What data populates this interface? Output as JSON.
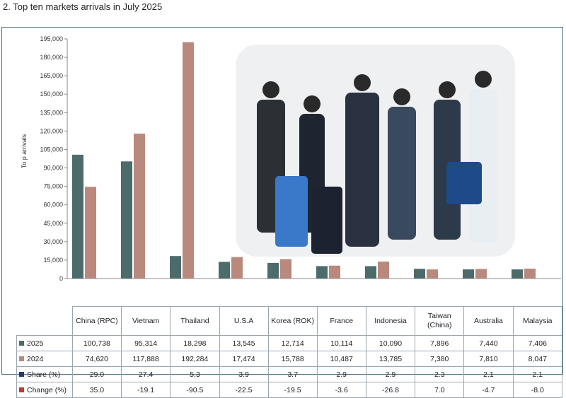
{
  "title": "2. Top ten markets arrivals in July 2025",
  "chart_data": {
    "type": "bar",
    "ylabel": "To p arrivals",
    "ylim": [
      0,
      195000
    ],
    "yticks": [
      "0",
      "15,000",
      "30,000",
      "45,000",
      "60,000",
      "75,000",
      "90,000",
      "105,000",
      "120,000",
      "135,000",
      "150,000",
      "165,000",
      "180,000",
      "195,000"
    ],
    "ytick_values": [
      0,
      15000,
      30000,
      45000,
      60000,
      75000,
      90000,
      105000,
      120000,
      135000,
      150000,
      165000,
      180000,
      195000
    ],
    "categories": [
      "China (RPC)",
      "Vietnam",
      "Thailand",
      "U.S.A",
      "Korea (ROK)",
      "France",
      "Indonesia",
      "Taiwan (China)",
      "Australia",
      "Malaysia"
    ],
    "series": [
      {
        "name": "2025",
        "color": "#4d6b6b",
        "values": [
          100738,
          95314,
          18298,
          13545,
          12714,
          10114,
          10090,
          7896,
          7440,
          7406
        ]
      },
      {
        "name": "2024",
        "color": "#b8897c",
        "values": [
          74620,
          117888,
          192284,
          17474,
          15788,
          10487,
          13785,
          7380,
          7810,
          8047
        ]
      }
    ],
    "grid": false,
    "legend": "table"
  },
  "table": {
    "categories": [
      "China (RPC)",
      "Vietnam",
      "Thailand",
      "U.S.A",
      "Korea (ROK)",
      "France",
      "Indonesia",
      "Taiwan (China)",
      "Australia",
      "Malaysia"
    ],
    "rows": [
      {
        "label": "2025",
        "color": "#4d6b6b",
        "cells": [
          "100,738",
          "95,314",
          "18,298",
          "13,545",
          "12,714",
          "10,114",
          "10,090",
          "7,896",
          "7,440",
          "7,406"
        ]
      },
      {
        "label": "2024",
        "color": "#b8897c",
        "cells": [
          "74,620",
          "117,888",
          "192,284",
          "17,474",
          "15,788",
          "10,487",
          "13,785",
          "7,380",
          "7,810",
          "8,047"
        ]
      },
      {
        "label": "Share (%)",
        "color": "#1f3a7a",
        "cells": [
          "29.0",
          "27.4",
          "5.3",
          "3.9",
          "3.7",
          "2.9",
          "2.9",
          "2.3",
          "2.1",
          "2.1"
        ]
      },
      {
        "label": "Change (%)",
        "color": "#c0392b",
        "cells": [
          "35.0",
          "-19.1",
          "-90.5",
          "-22.5",
          "-19.5",
          "-3.6",
          "-26.8",
          "7.0",
          "-4.7",
          "-8.0"
        ]
      }
    ]
  }
}
